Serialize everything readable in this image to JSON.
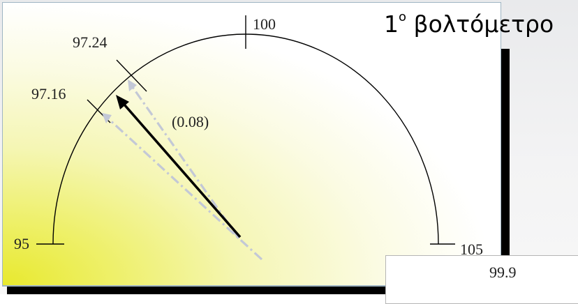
{
  "title": {
    "main": "1",
    "superscript": "ο",
    "rest": " βολτόμετρο"
  },
  "gauge": {
    "scale_min": "95",
    "scale_max": "105",
    "scale_mid": "100",
    "tick_labels": [
      "97.24",
      "97.16"
    ],
    "difference_label": "(0.08)"
  },
  "second_meter": {
    "partial_value": "99.9"
  },
  "colors": {
    "needle": "#000000",
    "ghost_needle": "#c3c8d6",
    "arc": "#000000"
  }
}
